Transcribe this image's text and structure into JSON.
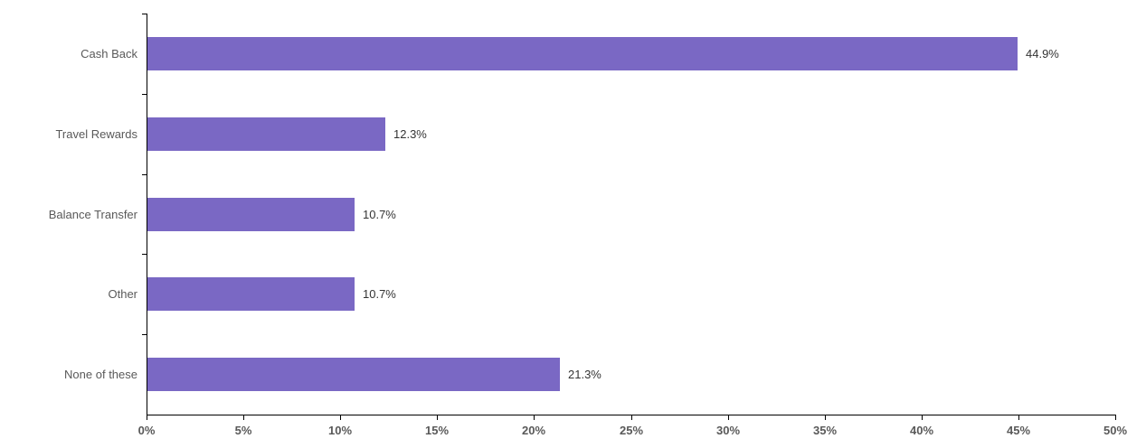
{
  "chart_data": {
    "type": "bar",
    "orientation": "horizontal",
    "title": "",
    "xlabel": "",
    "ylabel": "",
    "categories": [
      "Cash Back",
      "Travel Rewards",
      "Balance Transfer",
      "Other",
      "None of these"
    ],
    "values": [
      44.9,
      12.3,
      10.7,
      10.7,
      21.3
    ],
    "value_labels": [
      "44.9%",
      "12.3%",
      "10.7%",
      "10.7%",
      "21.3%"
    ],
    "xlim": [
      0,
      50
    ],
    "x_tick_step": 5,
    "x_tick_labels": [
      "0%",
      "5%",
      "10%",
      "15%",
      "20%",
      "25%",
      "30%",
      "35%",
      "40%",
      "45%",
      "50%"
    ],
    "grid": false,
    "legend": false,
    "colors": {
      "bar": "#7A68C4",
      "axis": "#000000",
      "x_tick_label": "#595959",
      "category_label": "#595959",
      "value_label": "#333333",
      "background": "#FFFFFF"
    }
  }
}
